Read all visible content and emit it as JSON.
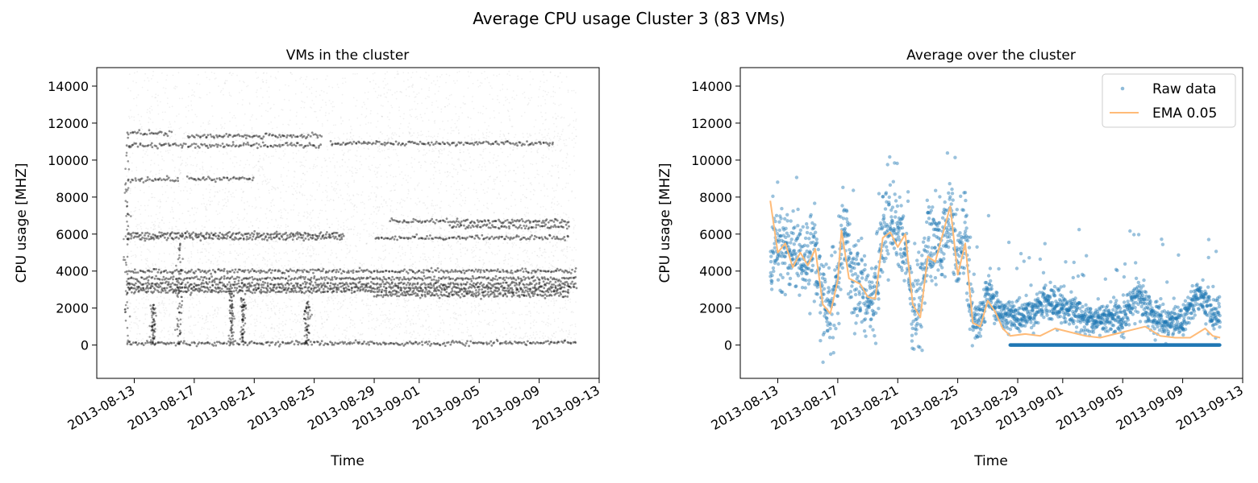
{
  "figure": {
    "suptitle": "Average CPU usage Cluster 3 (83 VMs)"
  },
  "chart_data": [
    {
      "type": "scatter",
      "title": "VMs in the cluster",
      "xlabel": "Time",
      "ylabel": "CPU usage [MHZ]",
      "x_axis_type": "date",
      "xlim": [
        "2013-08-10T12:00",
        "2013-09-13T00:00"
      ],
      "ylim": [
        -1800,
        15000
      ],
      "yticks": [
        0,
        2000,
        4000,
        6000,
        8000,
        10000,
        12000,
        14000
      ],
      "xticks": [
        "2013-08-13",
        "2013-08-17",
        "2013-08-21",
        "2013-08-25",
        "2013-08-29",
        "2013-09-01",
        "2013-09-05",
        "2013-09-09",
        "2013-09-13"
      ],
      "grid": false,
      "legend": null,
      "data_range": [
        "2013-08-12T12:00",
        "2013-09-11T12:00"
      ],
      "marker_color": "#000000",
      "horizontal_bands": [
        {
          "y": 100,
          "from": "2013-08-12T12:00",
          "to": "2013-09-11T12:00"
        },
        {
          "y": 2900,
          "from": "2013-08-12T12:00",
          "to": "2013-09-11T00:00"
        },
        {
          "y": 3100,
          "from": "2013-08-12T12:00",
          "to": "2013-09-11T12:00"
        },
        {
          "y": 3300,
          "from": "2013-08-12T12:00",
          "to": "2013-09-11T12:00"
        },
        {
          "y": 3600,
          "from": "2013-08-12T12:00",
          "to": "2013-09-11T12:00"
        },
        {
          "y": 4000,
          "from": "2013-08-12T12:00",
          "to": "2013-09-11T12:00"
        },
        {
          "y": 5800,
          "from": "2013-08-12T12:00",
          "to": "2013-08-27T00:00"
        },
        {
          "y": 6000,
          "from": "2013-08-12T12:00",
          "to": "2013-08-27T00:00"
        },
        {
          "y": 8950,
          "from": "2013-08-12T12:00",
          "to": "2013-08-16T00:00"
        },
        {
          "y": 9000,
          "from": "2013-08-16T12:00",
          "to": "2013-08-21T00:00"
        },
        {
          "y": 10800,
          "from": "2013-08-12T12:00",
          "to": "2013-08-25T12:00"
        },
        {
          "y": 11300,
          "from": "2013-08-16T12:00",
          "to": "2013-08-25T12:00"
        },
        {
          "y": 11450,
          "from": "2013-08-12T12:00",
          "to": "2013-08-15T12:00"
        },
        {
          "y": 6700,
          "from": "2013-08-30T00:00",
          "to": "2013-09-11T00:00"
        },
        {
          "y": 5800,
          "from": "2013-08-29T00:00",
          "to": "2013-09-11T00:00"
        },
        {
          "y": 10900,
          "from": "2013-08-26T00:00",
          "to": "2013-09-10T00:00"
        },
        {
          "y": 2700,
          "from": "2013-08-29T00:00",
          "to": "2013-09-11T00:00"
        },
        {
          "y": 6400,
          "from": "2013-09-03T00:00",
          "to": "2013-09-11T00:00"
        }
      ],
      "vertical_spikes": [
        {
          "x": "2013-08-14T06:00",
          "from": 0,
          "to": 2200
        },
        {
          "x": "2013-08-16T00:00",
          "from": 0,
          "to": 5500
        },
        {
          "x": "2013-08-19T12:00",
          "from": 0,
          "to": 2800
        },
        {
          "x": "2013-08-20T06:00",
          "from": 0,
          "to": 2600
        },
        {
          "x": "2013-08-24T12:00",
          "from": 0,
          "to": 2400
        },
        {
          "x": "2013-08-12T12:00",
          "from": 0,
          "to": 11500
        }
      ]
    },
    {
      "type": "scatter",
      "title": "Average over the cluster",
      "xlabel": "Time",
      "ylabel": "CPU usage [MHZ]",
      "x_axis_type": "date",
      "xlim": [
        "2013-08-10T12:00",
        "2013-09-13T00:00"
      ],
      "ylim": [
        -1800,
        15000
      ],
      "yticks": [
        0,
        2000,
        4000,
        6000,
        8000,
        10000,
        12000,
        14000
      ],
      "xticks": [
        "2013-08-13",
        "2013-08-17",
        "2013-08-21",
        "2013-08-25",
        "2013-08-29",
        "2013-09-01",
        "2013-09-05",
        "2013-09-09",
        "2013-09-13"
      ],
      "grid": false,
      "legend": {
        "position": "top-right"
      },
      "series": [
        {
          "name": "Raw data",
          "kind": "points",
          "color": "#1f77b4",
          "profile": [
            [
              "2013-08-12T12:00",
              4800
            ],
            [
              "2013-08-13T12:00",
              5300
            ],
            [
              "2013-08-14T12:00",
              4600
            ],
            [
              "2013-08-15T12:00",
              4900
            ],
            [
              "2013-08-16T00:00",
              2500
            ],
            [
              "2013-08-16T12:00",
              2200
            ],
            [
              "2013-08-17T00:00",
              3500
            ],
            [
              "2013-08-17T12:00",
              6800
            ],
            [
              "2013-08-18T00:00",
              3500
            ],
            [
              "2013-08-19T00:00",
              2600
            ],
            [
              "2013-08-19T12:00",
              2400
            ],
            [
              "2013-08-20T00:00",
              5900
            ],
            [
              "2013-08-20T12:00",
              6600
            ],
            [
              "2013-08-21T12:00",
              5600
            ],
            [
              "2013-08-22T00:00",
              2000
            ],
            [
              "2013-08-22T12:00",
              1600
            ],
            [
              "2013-08-23T00:00",
              5200
            ],
            [
              "2013-08-24T00:00",
              5600
            ],
            [
              "2013-08-24T12:00",
              7200
            ],
            [
              "2013-08-25T00:00",
              4600
            ],
            [
              "2013-08-25T12:00",
              5900
            ],
            [
              "2013-08-26T00:00",
              1300
            ],
            [
              "2013-08-26T12:00",
              1100
            ],
            [
              "2013-08-27T00:00",
              3200
            ],
            [
              "2013-08-27T12:00",
              2100
            ],
            [
              "2013-08-28T00:00",
              1600
            ],
            [
              "2013-08-29T00:00",
              1500
            ],
            [
              "2013-08-30T00:00",
              1700
            ],
            [
              "2013-08-31T00:00",
              2400
            ],
            [
              "2013-09-01T00:00",
              2000
            ],
            [
              "2013-09-02T00:00",
              1700
            ],
            [
              "2013-09-03T00:00",
              1300
            ],
            [
              "2013-09-04T00:00",
              1500
            ],
            [
              "2013-09-05T00:00",
              1400
            ],
            [
              "2013-09-06T00:00",
              2800
            ],
            [
              "2013-09-07T00:00",
              1500
            ],
            [
              "2013-09-08T00:00",
              1300
            ],
            [
              "2013-09-09T00:00",
              1200
            ],
            [
              "2013-09-10T00:00",
              2900
            ],
            [
              "2013-09-11T00:00",
              1600
            ],
            [
              "2013-09-11T12:00",
              1500
            ]
          ],
          "zero_band": {
            "y": 0,
            "from": "2013-08-28T12:00",
            "to": "2013-09-11T12:00"
          }
        },
        {
          "name": "EMA 0.05",
          "kind": "line",
          "color": "#ffbb78",
          "values": [
            [
              "2013-08-12T12:00",
              7800
            ],
            [
              "2013-08-13T00:00",
              5000
            ],
            [
              "2013-08-13T12:00",
              5500
            ],
            [
              "2013-08-14T00:00",
              4200
            ],
            [
              "2013-08-14T12:00",
              5000
            ],
            [
              "2013-08-15T00:00",
              4300
            ],
            [
              "2013-08-15T12:00",
              5200
            ],
            [
              "2013-08-16T00:00",
              2200
            ],
            [
              "2013-08-16T12:00",
              1700
            ],
            [
              "2013-08-17T00:00",
              3500
            ],
            [
              "2013-08-17T06:00",
              6200
            ],
            [
              "2013-08-17T18:00",
              3600
            ],
            [
              "2013-08-18T12:00",
              3300
            ],
            [
              "2013-08-19T00:00",
              2600
            ],
            [
              "2013-08-19T12:00",
              2500
            ],
            [
              "2013-08-20T00:00",
              5800
            ],
            [
              "2013-08-20T12:00",
              6100
            ],
            [
              "2013-08-21T00:00",
              5300
            ],
            [
              "2013-08-21T12:00",
              6000
            ],
            [
              "2013-08-22T00:00",
              2200
            ],
            [
              "2013-08-22T12:00",
              1500
            ],
            [
              "2013-08-23T00:00",
              4800
            ],
            [
              "2013-08-23T12:00",
              4500
            ],
            [
              "2013-08-24T00:00",
              6000
            ],
            [
              "2013-08-24T12:00",
              7500
            ],
            [
              "2013-08-25T00:00",
              3800
            ],
            [
              "2013-08-25T12:00",
              5500
            ],
            [
              "2013-08-26T00:00",
              1200
            ],
            [
              "2013-08-26T12:00",
              1000
            ],
            [
              "2013-08-27T00:00",
              2400
            ],
            [
              "2013-08-27T12:00",
              1800
            ],
            [
              "2013-08-28T00:00",
              900
            ],
            [
              "2013-08-28T12:00",
              500
            ],
            [
              "2013-08-29T12:00",
              600
            ],
            [
              "2013-08-30T12:00",
              500
            ],
            [
              "2013-08-31T12:00",
              900
            ],
            [
              "2013-09-01T12:00",
              700
            ],
            [
              "2013-09-02T12:00",
              500
            ],
            [
              "2013-09-03T12:00",
              400
            ],
            [
              "2013-09-04T12:00",
              600
            ],
            [
              "2013-09-05T12:00",
              800
            ],
            [
              "2013-09-06T12:00",
              1000
            ],
            [
              "2013-09-07T12:00",
              500
            ],
            [
              "2013-09-08T12:00",
              400
            ],
            [
              "2013-09-09T12:00",
              400
            ],
            [
              "2013-09-10T12:00",
              900
            ],
            [
              "2013-09-11T00:00",
              500
            ],
            [
              "2013-09-11T12:00",
              400
            ]
          ]
        }
      ]
    }
  ]
}
